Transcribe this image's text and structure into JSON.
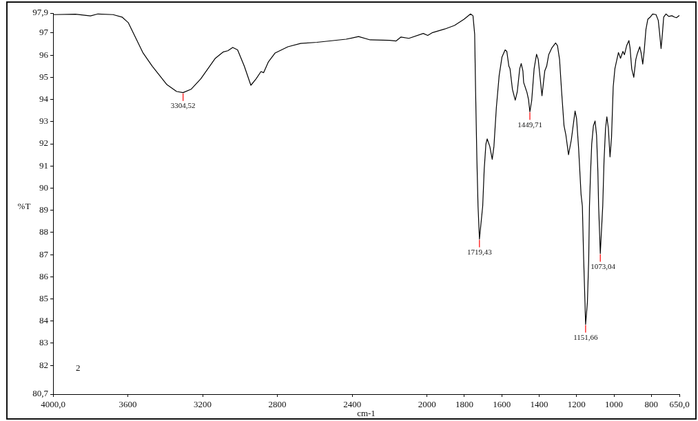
{
  "chart_data": {
    "type": "line",
    "xlabel": "cm-1",
    "ylabel": "%T",
    "xlim": [
      4000,
      650
    ],
    "xticks": [
      {
        "value": 4000,
        "label": "4000,0"
      },
      3600,
      3200,
      2800,
      2400,
      2000,
      1800,
      1600,
      1400,
      1200,
      1000,
      800,
      {
        "value": 650,
        "label": "650,0"
      }
    ],
    "ylim": [
      80.7,
      97.9
    ],
    "yticks": [
      {
        "value": 97.9,
        "label": "97,9"
      },
      97,
      96,
      95,
      94,
      93,
      92,
      91,
      90,
      89,
      88,
      87,
      86,
      85,
      84,
      83,
      82,
      {
        "value": 80.7,
        "label": "80,7"
      }
    ],
    "color": "#000000",
    "x": [
      4000,
      3880,
      3800,
      3760,
      3679,
      3631,
      3598,
      3520,
      3469,
      3391,
      3339,
      3304.52,
      3262,
      3210,
      3132,
      3091,
      3065,
      3039,
      3013,
      2977,
      2942,
      2914,
      2888,
      2874,
      2848,
      2812,
      2744,
      2676,
      2589,
      2433,
      2366,
      2304,
      2200,
      2165,
      2139,
      2097,
      2020,
      1996,
      1970,
      1905,
      1853,
      1802,
      1767,
      1754,
      1745,
      1740,
      1733,
      1727,
      1719.43,
      1702,
      1694,
      1685,
      1678,
      1664,
      1651,
      1642,
      1629,
      1614,
      1599,
      1582,
      1573,
      1562,
      1556,
      1543,
      1528,
      1517,
      1504,
      1496,
      1487,
      1483,
      1465,
      1457,
      1449.71,
      1440,
      1427,
      1414,
      1405,
      1395,
      1385,
      1377,
      1370,
      1360,
      1349,
      1332,
      1312,
      1302,
      1291,
      1280,
      1267,
      1257,
      1243,
      1228,
      1208,
      1200,
      1189,
      1176,
      1169,
      1162,
      1155,
      1151.66,
      1142,
      1135,
      1131,
      1125,
      1119,
      1110,
      1101,
      1093,
      1086,
      1082,
      1073.04,
      1060,
      1053,
      1045,
      1038,
      1030,
      1021,
      1013,
      1004,
      995,
      987,
      976,
      965,
      952,
      944,
      932,
      920,
      914,
      905,
      894,
      883,
      875,
      862,
      855,
      846,
      838,
      829,
      819,
      806,
      793,
      775,
      763,
      754,
      748,
      741,
      734,
      722,
      707,
      690,
      677,
      666,
      650
    ],
    "values": [
      97.83,
      97.85,
      97.77,
      97.86,
      97.83,
      97.72,
      97.47,
      96.12,
      95.5,
      94.67,
      94.36,
      94.31,
      94.46,
      94.93,
      95.86,
      96.14,
      96.2,
      96.35,
      96.24,
      95.5,
      94.64,
      94.93,
      95.26,
      95.21,
      95.7,
      96.1,
      96.38,
      96.53,
      96.58,
      96.72,
      96.84,
      96.69,
      96.67,
      96.64,
      96.82,
      96.76,
      96.98,
      96.89,
      97.02,
      97.18,
      97.34,
      97.62,
      97.86,
      97.78,
      96.95,
      94.36,
      91.26,
      89.19,
      87.7,
      89.19,
      90.84,
      91.98,
      92.22,
      91.88,
      91.3,
      91.88,
      93.63,
      95.08,
      95.91,
      96.24,
      96.17,
      95.5,
      95.39,
      94.46,
      93.97,
      94.36,
      95.39,
      95.62,
      95.29,
      94.77,
      94.31,
      94.0,
      93.45,
      93.95,
      95.39,
      96.04,
      95.81,
      94.98,
      94.17,
      94.77,
      95.29,
      95.5,
      96.02,
      96.33,
      96.55,
      96.43,
      95.81,
      94.36,
      92.81,
      92.39,
      91.51,
      92.18,
      93.48,
      93.14,
      91.79,
      89.72,
      89.19,
      86.8,
      84.84,
      83.85,
      84.84,
      86.8,
      89.19,
      90.74,
      91.98,
      92.81,
      93.03,
      92.39,
      90.74,
      89.19,
      87.05,
      89.19,
      91.26,
      92.7,
      93.22,
      92.7,
      91.41,
      92.29,
      94.57,
      95.39,
      95.7,
      96.12,
      95.86,
      96.17,
      96.02,
      96.43,
      96.66,
      96.33,
      95.39,
      95.0,
      95.81,
      96.07,
      96.38,
      96.12,
      95.6,
      96.22,
      97.16,
      97.62,
      97.72,
      97.86,
      97.83,
      97.57,
      96.84,
      96.3,
      96.95,
      97.72,
      97.86,
      97.75,
      97.78,
      97.72,
      97.69,
      97.79
    ],
    "annotations": [
      {
        "text": "3304,52",
        "x": 3304.52,
        "y": 94.31
      },
      {
        "text": "1719,43",
        "x": 1719.43,
        "y": 87.7
      },
      {
        "text": "1449,71",
        "x": 1449.71,
        "y": 93.45
      },
      {
        "text": "1151,66",
        "x": 1151.66,
        "y": 83.85
      },
      {
        "text": "1073,04",
        "x": 1073.04,
        "y": 87.05
      },
      "2"
    ]
  }
}
